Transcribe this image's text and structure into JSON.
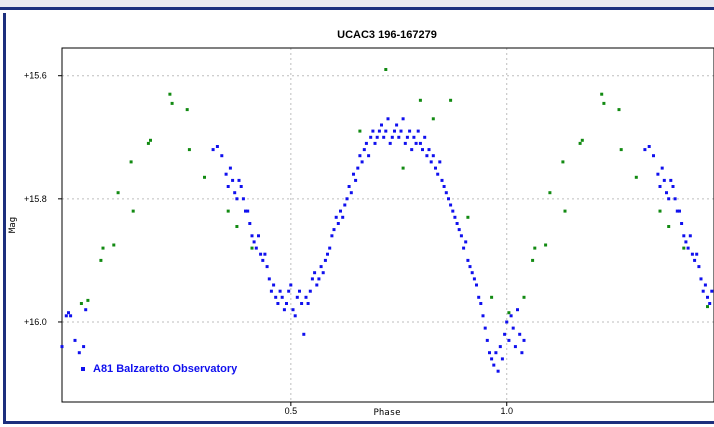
{
  "chart_data": {
    "type": "scatter",
    "title": "UCAC3 196-167279",
    "xlabel": "Phase",
    "ylabel": "Mag",
    "xlim": [
      -0.03,
      1.48
    ],
    "ylim": [
      15.555,
      16.13
    ],
    "y_inverted": true,
    "x_ticks": [
      0.5,
      1.0
    ],
    "x_tick_labels": [
      "0.5",
      "1.0"
    ],
    "y_ticks": [
      15.6,
      15.8,
      16.0
    ],
    "y_tick_labels": [
      "+15.6",
      "+15.8",
      "+16.0"
    ],
    "grid": true,
    "legend_position": "bottom-left",
    "series": [
      {
        "name": "A81 Balzaretto Observatory",
        "color": "#1010ee",
        "points": [
          [
            -0.03,
            16.04
          ],
          [
            -0.02,
            15.99
          ],
          [
            -0.015,
            15.985
          ],
          [
            -0.01,
            15.99
          ],
          [
            0.0,
            16.03
          ],
          [
            0.01,
            16.05
          ],
          [
            0.02,
            16.04
          ],
          [
            0.025,
            15.98
          ],
          [
            0.32,
            15.72
          ],
          [
            0.33,
            15.715
          ],
          [
            0.34,
            15.73
          ],
          [
            0.35,
            15.76
          ],
          [
            0.355,
            15.78
          ],
          [
            0.36,
            15.75
          ],
          [
            0.365,
            15.77
          ],
          [
            0.37,
            15.79
          ],
          [
            0.375,
            15.8
          ],
          [
            0.38,
            15.77
          ],
          [
            0.385,
            15.78
          ],
          [
            0.39,
            15.8
          ],
          [
            0.395,
            15.82
          ],
          [
            0.4,
            15.82
          ],
          [
            0.405,
            15.84
          ],
          [
            0.41,
            15.86
          ],
          [
            0.415,
            15.87
          ],
          [
            0.42,
            15.88
          ],
          [
            0.425,
            15.86
          ],
          [
            0.43,
            15.89
          ],
          [
            0.435,
            15.9
          ],
          [
            0.44,
            15.89
          ],
          [
            0.445,
            15.91
          ],
          [
            0.45,
            15.93
          ],
          [
            0.455,
            15.95
          ],
          [
            0.46,
            15.94
          ],
          [
            0.465,
            15.96
          ],
          [
            0.47,
            15.97
          ],
          [
            0.475,
            15.95
          ],
          [
            0.48,
            15.96
          ],
          [
            0.485,
            15.98
          ],
          [
            0.49,
            15.97
          ],
          [
            0.495,
            15.95
          ],
          [
            0.5,
            15.94
          ],
          [
            0.505,
            15.98
          ],
          [
            0.51,
            15.99
          ],
          [
            0.515,
            15.96
          ],
          [
            0.52,
            15.95
          ],
          [
            0.525,
            15.97
          ],
          [
            0.53,
            16.02
          ],
          [
            0.535,
            15.96
          ],
          [
            0.54,
            15.97
          ],
          [
            0.545,
            15.95
          ],
          [
            0.55,
            15.93
          ],
          [
            0.555,
            15.92
          ],
          [
            0.56,
            15.94
          ],
          [
            0.565,
            15.93
          ],
          [
            0.57,
            15.91
          ],
          [
            0.575,
            15.92
          ],
          [
            0.58,
            15.9
          ],
          [
            0.585,
            15.89
          ],
          [
            0.59,
            15.88
          ],
          [
            0.595,
            15.86
          ],
          [
            0.6,
            15.85
          ],
          [
            0.605,
            15.83
          ],
          [
            0.61,
            15.84
          ],
          [
            0.615,
            15.82
          ],
          [
            0.62,
            15.83
          ],
          [
            0.625,
            15.81
          ],
          [
            0.63,
            15.8
          ],
          [
            0.635,
            15.78
          ],
          [
            0.64,
            15.79
          ],
          [
            0.645,
            15.76
          ],
          [
            0.65,
            15.77
          ],
          [
            0.655,
            15.75
          ],
          [
            0.66,
            15.73
          ],
          [
            0.665,
            15.74
          ],
          [
            0.67,
            15.72
          ],
          [
            0.675,
            15.71
          ],
          [
            0.68,
            15.73
          ],
          [
            0.685,
            15.7
          ],
          [
            0.69,
            15.69
          ],
          [
            0.695,
            15.71
          ],
          [
            0.7,
            15.7
          ],
          [
            0.705,
            15.69
          ],
          [
            0.71,
            15.68
          ],
          [
            0.715,
            15.7
          ],
          [
            0.72,
            15.69
          ],
          [
            0.725,
            15.67
          ],
          [
            0.73,
            15.71
          ],
          [
            0.735,
            15.7
          ],
          [
            0.74,
            15.69
          ],
          [
            0.745,
            15.68
          ],
          [
            0.75,
            15.7
          ],
          [
            0.755,
            15.69
          ],
          [
            0.76,
            15.67
          ],
          [
            0.765,
            15.71
          ],
          [
            0.77,
            15.7
          ],
          [
            0.775,
            15.69
          ],
          [
            0.78,
            15.72
          ],
          [
            0.785,
            15.7
          ],
          [
            0.79,
            15.71
          ],
          [
            0.795,
            15.69
          ],
          [
            0.8,
            15.71
          ],
          [
            0.805,
            15.72
          ],
          [
            0.81,
            15.7
          ],
          [
            0.815,
            15.73
          ],
          [
            0.82,
            15.72
          ],
          [
            0.825,
            15.74
          ],
          [
            0.83,
            15.73
          ],
          [
            0.835,
            15.75
          ],
          [
            0.84,
            15.76
          ],
          [
            0.845,
            15.74
          ],
          [
            0.85,
            15.77
          ],
          [
            0.855,
            15.78
          ],
          [
            0.86,
            15.79
          ],
          [
            0.865,
            15.8
          ],
          [
            0.87,
            15.81
          ],
          [
            0.875,
            15.82
          ],
          [
            0.88,
            15.83
          ],
          [
            0.885,
            15.84
          ],
          [
            0.89,
            15.85
          ],
          [
            0.895,
            15.86
          ],
          [
            0.9,
            15.88
          ],
          [
            0.905,
            15.87
          ],
          [
            0.91,
            15.9
          ],
          [
            0.915,
            15.91
          ],
          [
            0.92,
            15.92
          ],
          [
            0.925,
            15.93
          ],
          [
            0.93,
            15.94
          ],
          [
            0.935,
            15.96
          ],
          [
            0.94,
            15.97
          ],
          [
            0.945,
            15.99
          ],
          [
            0.95,
            16.01
          ],
          [
            0.955,
            16.03
          ],
          [
            0.96,
            16.05
          ],
          [
            0.965,
            16.06
          ],
          [
            0.97,
            16.07
          ],
          [
            0.975,
            16.05
          ],
          [
            0.98,
            16.08
          ],
          [
            0.985,
            16.04
          ],
          [
            0.99,
            16.06
          ],
          [
            0.995,
            16.02
          ],
          [
            1.0,
            16.0
          ],
          [
            1.005,
            16.03
          ],
          [
            1.01,
            15.99
          ],
          [
            1.015,
            16.01
          ],
          [
            1.02,
            16.04
          ],
          [
            1.025,
            15.98
          ],
          [
            1.03,
            16.02
          ],
          [
            1.035,
            16.05
          ],
          [
            1.04,
            16.03
          ],
          [
            1.32,
            15.72
          ],
          [
            1.33,
            15.715
          ],
          [
            1.34,
            15.73
          ],
          [
            1.35,
            15.76
          ],
          [
            1.355,
            15.78
          ],
          [
            1.36,
            15.75
          ],
          [
            1.365,
            15.77
          ],
          [
            1.37,
            15.79
          ],
          [
            1.375,
            15.8
          ],
          [
            1.38,
            15.77
          ],
          [
            1.385,
            15.78
          ],
          [
            1.39,
            15.8
          ],
          [
            1.395,
            15.82
          ],
          [
            1.4,
            15.82
          ],
          [
            1.405,
            15.84
          ],
          [
            1.41,
            15.86
          ],
          [
            1.415,
            15.87
          ],
          [
            1.42,
            15.88
          ],
          [
            1.425,
            15.86
          ],
          [
            1.43,
            15.89
          ],
          [
            1.435,
            15.9
          ],
          [
            1.44,
            15.89
          ],
          [
            1.445,
            15.91
          ],
          [
            1.45,
            15.93
          ],
          [
            1.455,
            15.95
          ],
          [
            1.46,
            15.94
          ],
          [
            1.465,
            15.96
          ],
          [
            1.47,
            15.97
          ],
          [
            1.475,
            15.95
          ]
        ]
      },
      {
        "name": "",
        "color": "#128a12",
        "points": [
          [
            0.015,
            15.97
          ],
          [
            0.03,
            15.965
          ],
          [
            0.06,
            15.9
          ],
          [
            0.065,
            15.88
          ],
          [
            0.09,
            15.875
          ],
          [
            0.1,
            15.79
          ],
          [
            0.13,
            15.74
          ],
          [
            0.135,
            15.82
          ],
          [
            0.17,
            15.71
          ],
          [
            0.175,
            15.705
          ],
          [
            0.22,
            15.63
          ],
          [
            0.225,
            15.645
          ],
          [
            0.26,
            15.655
          ],
          [
            0.265,
            15.72
          ],
          [
            0.3,
            15.765
          ],
          [
            0.355,
            15.82
          ],
          [
            0.375,
            15.845
          ],
          [
            0.41,
            15.88
          ],
          [
            0.66,
            15.69
          ],
          [
            0.72,
            15.59
          ],
          [
            0.76,
            15.75
          ],
          [
            0.8,
            15.64
          ],
          [
            0.83,
            15.67
          ],
          [
            0.87,
            15.64
          ],
          [
            0.91,
            15.83
          ],
          [
            0.965,
            15.96
          ],
          [
            1.005,
            15.985
          ],
          [
            1.04,
            15.96
          ],
          [
            1.06,
            15.9
          ],
          [
            1.065,
            15.88
          ],
          [
            1.09,
            15.875
          ],
          [
            1.1,
            15.79
          ],
          [
            1.13,
            15.74
          ],
          [
            1.135,
            15.82
          ],
          [
            1.17,
            15.71
          ],
          [
            1.175,
            15.705
          ],
          [
            1.22,
            15.63
          ],
          [
            1.225,
            15.645
          ],
          [
            1.26,
            15.655
          ],
          [
            1.265,
            15.72
          ],
          [
            1.3,
            15.765
          ],
          [
            1.355,
            15.82
          ],
          [
            1.375,
            15.845
          ],
          [
            1.41,
            15.88
          ],
          [
            1.465,
            15.975
          ]
        ]
      }
    ]
  }
}
